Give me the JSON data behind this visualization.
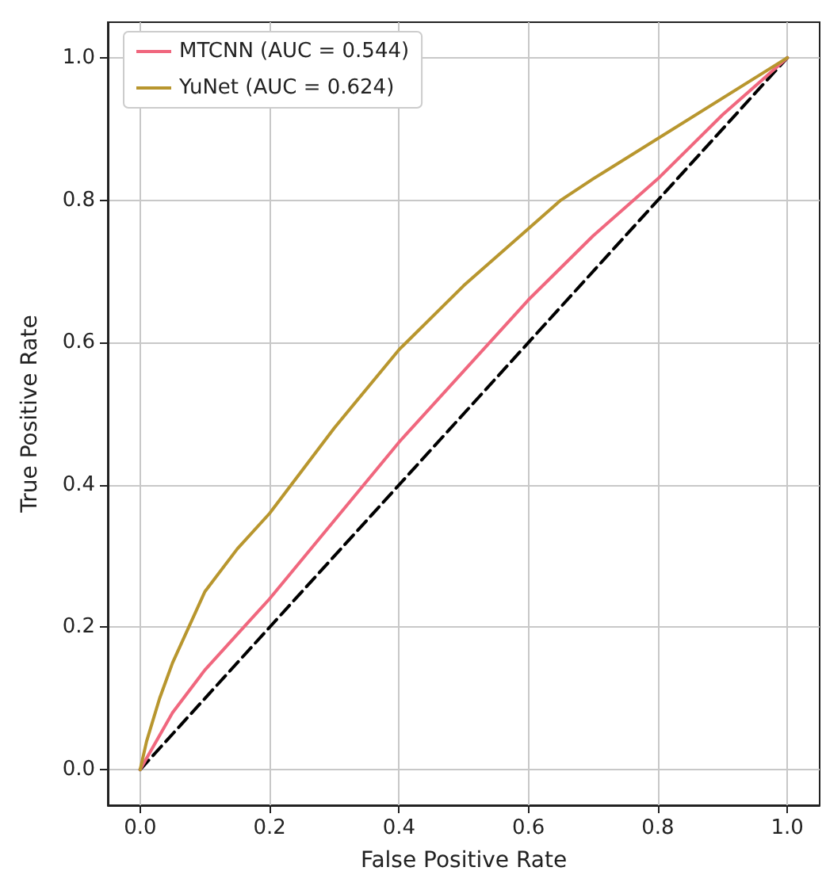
{
  "chart_data": {
    "type": "line",
    "xlabel": "False Positive Rate",
    "ylabel": "True Positive Rate",
    "xlim": [
      -0.05,
      1.05
    ],
    "ylim": [
      -0.05,
      1.05
    ],
    "xticks": [
      {
        "value": 0,
        "label": "0.0"
      },
      {
        "value": 0.2,
        "label": "0.2"
      },
      {
        "value": 0.4,
        "label": "0.4"
      },
      {
        "value": 0.6,
        "label": "0.6"
      },
      {
        "value": 0.8,
        "label": "0.8"
      },
      {
        "value": 1,
        "label": "1.0"
      }
    ],
    "yticks": [
      {
        "value": 0,
        "label": "0.0"
      },
      {
        "value": 0.2,
        "label": "0.2"
      },
      {
        "value": 0.4,
        "label": "0.4"
      },
      {
        "value": 0.6,
        "label": "0.6"
      },
      {
        "value": 0.8,
        "label": "0.8"
      },
      {
        "value": 1,
        "label": "1.0"
      }
    ],
    "grid": true,
    "legend": "top left",
    "marker": "none",
    "series": [
      {
        "name": "MTCNN (AUC = 0.544)",
        "color": "#f0677e",
        "line_style": "solid",
        "x": [
          0,
          0.05,
          0.1,
          0.15,
          0.2,
          0.3,
          0.4,
          0.5,
          0.6,
          0.7,
          0.8,
          0.9,
          1
        ],
        "values": [
          0,
          0.08,
          0.14,
          0.19,
          0.24,
          0.35,
          0.46,
          0.56,
          0.66,
          0.75,
          0.83,
          0.92,
          1
        ]
      },
      {
        "name": "YuNet (AUC = 0.624)",
        "color": "#b8962e",
        "line_style": "solid",
        "x": [
          0,
          0.01,
          0.03,
          0.05,
          0.1,
          0.15,
          0.2,
          0.3,
          0.4,
          0.5,
          0.6,
          0.65,
          0.7,
          1
        ],
        "values": [
          0,
          0.04,
          0.1,
          0.15,
          0.25,
          0.31,
          0.36,
          0.48,
          0.59,
          0.68,
          0.76,
          0.8,
          0.83,
          1
        ]
      },
      {
        "color": "#000000",
        "line_style": "dashed",
        "x": [
          0,
          1
        ],
        "values": [
          0,
          1
        ]
      }
    ]
  }
}
